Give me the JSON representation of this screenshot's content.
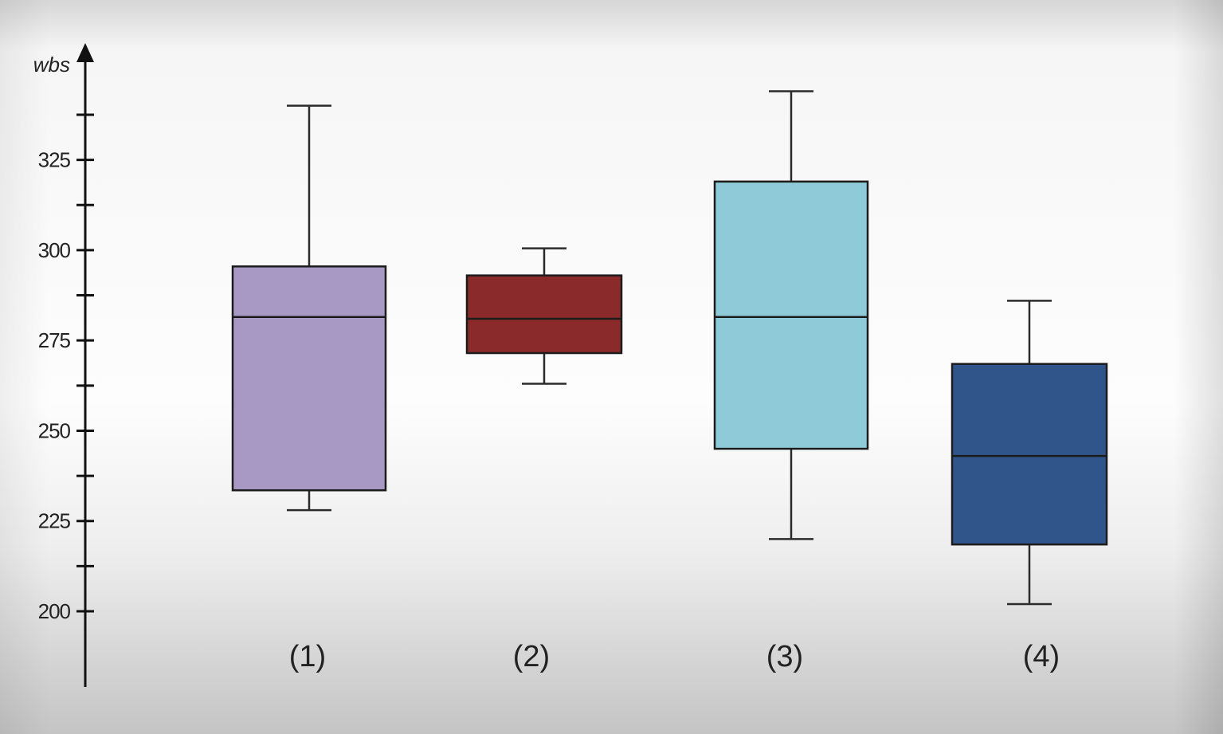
{
  "chart_data": {
    "type": "boxplot",
    "title": "",
    "xlabel": "",
    "ylabel": "wbs",
    "ylim": [
      183,
      352
    ],
    "yticks_major": [
      200,
      225,
      250,
      275,
      300,
      325
    ],
    "yticks_minor": [
      212.5,
      237.5,
      262.5,
      287.5,
      312.5,
      337.5
    ],
    "categories": [
      "(1)",
      "(2)",
      "(3)",
      "(4)"
    ],
    "boxes": [
      {
        "label": "(1)",
        "whisker_low": 228,
        "q1": 233.5,
        "median": 281.5,
        "q3": 295.5,
        "whisker_high": 340,
        "color": "#a898c4"
      },
      {
        "label": "(2)",
        "whisker_low": 263,
        "q1": 271.5,
        "median": 281,
        "q3": 293,
        "whisker_high": 300.5,
        "color": "#8b2a2b"
      },
      {
        "label": "(3)",
        "whisker_low": 220,
        "q1": 245,
        "median": 281.5,
        "q3": 319,
        "whisker_high": 344,
        "color": "#8ecad8"
      },
      {
        "label": "(4)",
        "whisker_low": 202,
        "q1": 218.5,
        "median": 243,
        "q3": 268.5,
        "whisker_high": 286,
        "color": "#30558a"
      }
    ],
    "grid": false,
    "legend": "none"
  }
}
